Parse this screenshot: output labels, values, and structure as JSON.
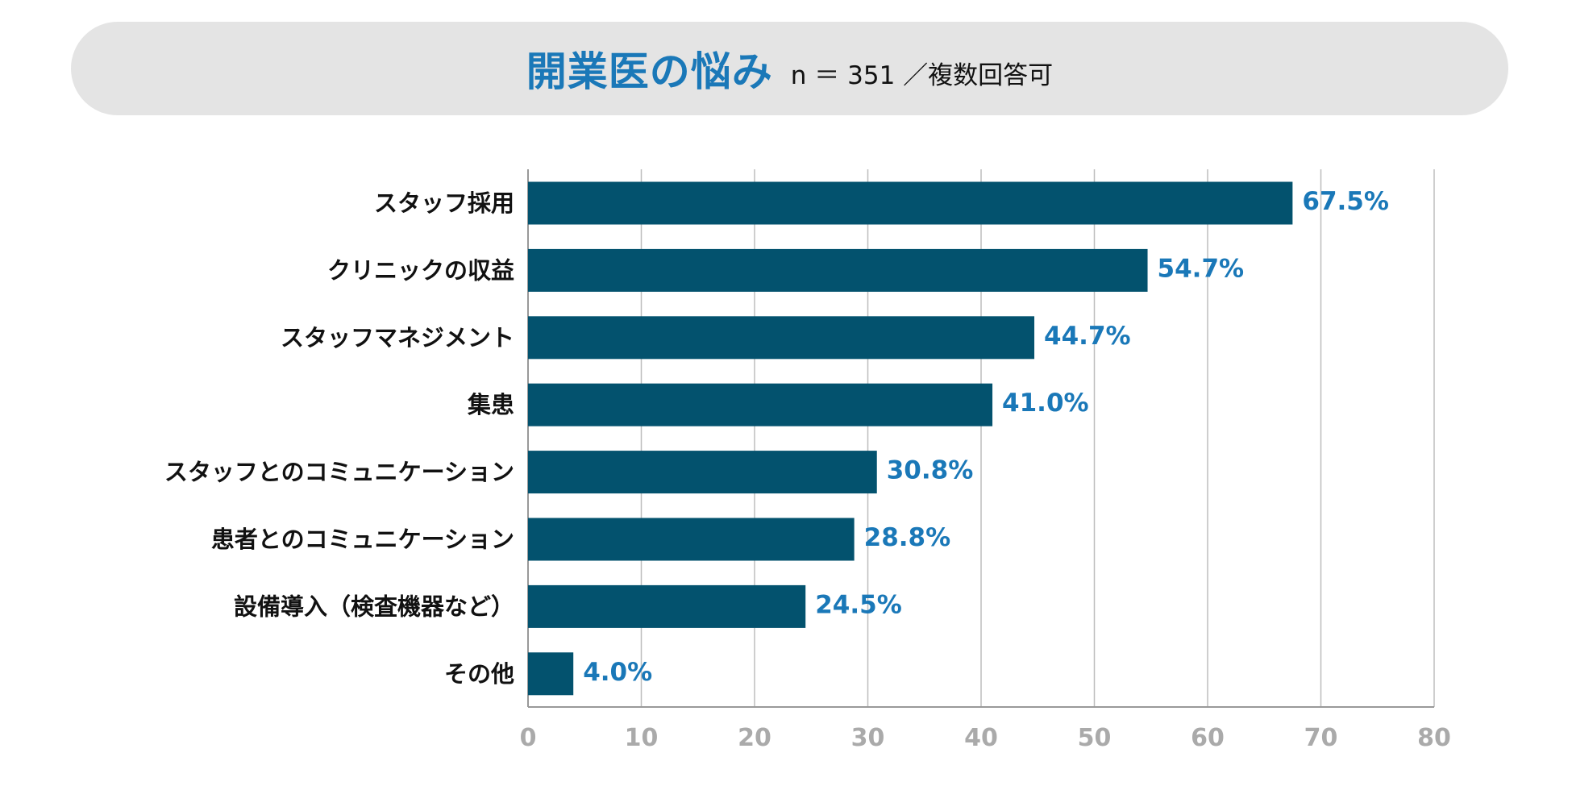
{
  "header": {
    "title": "開業医の悩み",
    "subtitle": "n ＝ 351 ／複数回答可"
  },
  "chart_data": {
    "type": "bar",
    "orientation": "horizontal",
    "title": "開業医の悩み",
    "subtitle": "n ＝ 351 ／複数回答可",
    "categories": [
      "スタッフ採用",
      "クリニックの収益",
      "スタッフマネジメント",
      "集患",
      "スタッフとのコミュニケーション",
      "患者とのコミュニケーション",
      "設備導入（検査機器など）",
      "その他"
    ],
    "values": [
      67.5,
      54.7,
      44.7,
      41.0,
      30.8,
      28.8,
      24.5,
      4.0
    ],
    "value_labels": [
      "67.5%",
      "54.7%",
      "44.7%",
      "41.0%",
      "30.8%",
      "28.8%",
      "24.5%",
      "4.0%"
    ],
    "xlim": [
      0,
      80
    ],
    "xticks": [
      0,
      10,
      20,
      30,
      40,
      50,
      60,
      70,
      80
    ],
    "xtick_labels": [
      "0",
      "10",
      "20",
      "30",
      "40",
      "50",
      "60",
      "70",
      "80"
    ],
    "xlabel": "",
    "ylabel": "",
    "grid": "vertical",
    "colors": {
      "bar": "#03526e",
      "value_label": "#1a78b8",
      "title": "#1a78b8",
      "grid": "#bdbdbd",
      "tick_label": "#aaaaaa",
      "axis": "#999999"
    }
  }
}
